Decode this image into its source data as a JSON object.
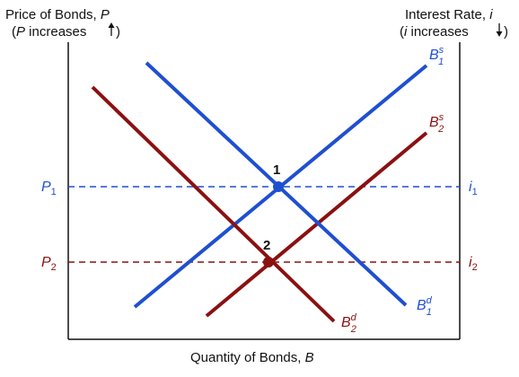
{
  "axes": {
    "left_title_line1_pre": "Price of Bonds, ",
    "left_title_line1_var": "P",
    "left_title_line2_pre": "(",
    "left_title_line2_var": "P",
    "left_title_line2_post": " increases",
    "right_title_line1_pre": "Interest Rate, ",
    "right_title_line1_var": "i",
    "right_title_line2_pre": "(",
    "right_title_line2_var": "i",
    "right_title_line2_post": " increases",
    "bottom_title_pre": "Quantity of Bonds, ",
    "bottom_title_var": "B"
  },
  "curves": {
    "s1": {
      "base": "B",
      "sup": "s",
      "sub": "1",
      "color": "#1f4fd1"
    },
    "s2": {
      "base": "B",
      "sup": "s",
      "sub": "2",
      "color": "#8b1010"
    },
    "d1": {
      "base": "B",
      "sup": "d",
      "sub": "1",
      "color": "#1f4fd1"
    },
    "d2": {
      "base": "B",
      "sup": "d",
      "sub": "2",
      "color": "#8b1010"
    }
  },
  "levels": {
    "p1": {
      "base": "P",
      "sub": "1",
      "color": "#1f4fd1"
    },
    "p2": {
      "base": "P",
      "sub": "2",
      "color": "#8b1010"
    },
    "i1": {
      "base": "i",
      "sub": "1",
      "color": "#1f4fd1"
    },
    "i2": {
      "base": "i",
      "sub": "2",
      "color": "#8b1010"
    }
  },
  "points": {
    "eq1": {
      "label": "1",
      "color": "#1f4fd1"
    },
    "eq2": {
      "label": "2",
      "color": "#8b1010"
    }
  }
}
